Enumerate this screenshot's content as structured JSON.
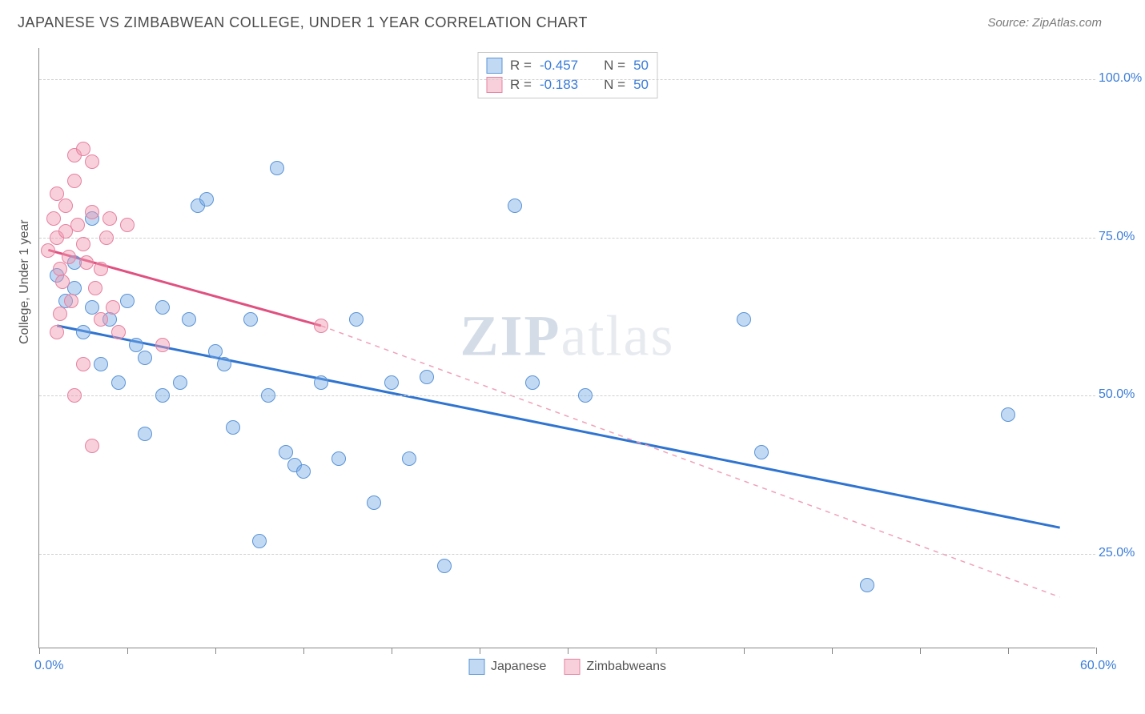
{
  "header": {
    "title": "JAPANESE VS ZIMBABWEAN COLLEGE, UNDER 1 YEAR CORRELATION CHART",
    "source": "Source: ZipAtlas.com"
  },
  "ylabel": "College, Under 1 year",
  "watermark_bold": "ZIP",
  "watermark_rest": "atlas",
  "chart": {
    "type": "scatter",
    "xlim": [
      0,
      60
    ],
    "ylim": [
      10,
      105
    ],
    "ytick_values": [
      25,
      50,
      75,
      100
    ],
    "ytick_labels": [
      "25.0%",
      "50.0%",
      "75.0%",
      "100.0%"
    ],
    "xtick_positions": [
      0,
      5,
      10,
      15,
      20,
      25,
      30,
      35,
      40,
      45,
      50,
      55,
      60
    ],
    "xtick_labels": {
      "0": "0.0%",
      "60": "60.0%"
    },
    "grid_color": "#d0d0d0",
    "background_color": "#ffffff",
    "point_radius": 9,
    "series": [
      {
        "name": "Japanese",
        "fill": "rgba(120,170,230,0.45)",
        "stroke": "#5a94d6",
        "R": "-0.457",
        "N": "50",
        "line": {
          "x1": 1,
          "y1": 61,
          "x2": 58,
          "y2": 29,
          "color": "#2f74d0",
          "width": 3,
          "dash": "none"
        },
        "points": [
          [
            1,
            69
          ],
          [
            1.5,
            65
          ],
          [
            2,
            71
          ],
          [
            2,
            67
          ],
          [
            2.5,
            60
          ],
          [
            3,
            64
          ],
          [
            3,
            78
          ],
          [
            3.5,
            55
          ],
          [
            4,
            62
          ],
          [
            4.5,
            52
          ],
          [
            5,
            65
          ],
          [
            5.5,
            58
          ],
          [
            6,
            44
          ],
          [
            6,
            56
          ],
          [
            7,
            50
          ],
          [
            7,
            64
          ],
          [
            8,
            52
          ],
          [
            8.5,
            62
          ],
          [
            9,
            80
          ],
          [
            9.5,
            81
          ],
          [
            10,
            57
          ],
          [
            10.5,
            55
          ],
          [
            11,
            45
          ],
          [
            12,
            62
          ],
          [
            12.5,
            27
          ],
          [
            13,
            50
          ],
          [
            13.5,
            86
          ],
          [
            14,
            41
          ],
          [
            14.5,
            39
          ],
          [
            15,
            38
          ],
          [
            16,
            52
          ],
          [
            17,
            40
          ],
          [
            18,
            62
          ],
          [
            19,
            33
          ],
          [
            20,
            52
          ],
          [
            21,
            40
          ],
          [
            22,
            53
          ],
          [
            23,
            23
          ],
          [
            27,
            80
          ],
          [
            28,
            52
          ],
          [
            31,
            50
          ],
          [
            40,
            62
          ],
          [
            41,
            41
          ],
          [
            47,
            20
          ],
          [
            55,
            47
          ]
        ]
      },
      {
        "name": "Zimbabweans",
        "fill": "rgba(240,150,175,0.45)",
        "stroke": "#e681a0",
        "R": "-0.183",
        "N": "50",
        "line_solid": {
          "x1": 0.5,
          "y1": 73,
          "x2": 16,
          "y2": 61,
          "color": "#e05080",
          "width": 3
        },
        "line_dashed": {
          "x1": 16,
          "y1": 61,
          "x2": 58,
          "y2": 18,
          "color": "#f0a0b8",
          "width": 1.5
        },
        "points": [
          [
            0.5,
            73
          ],
          [
            0.8,
            78
          ],
          [
            1,
            82
          ],
          [
            1,
            75
          ],
          [
            1.2,
            70
          ],
          [
            1.3,
            68
          ],
          [
            1.5,
            76
          ],
          [
            1.5,
            80
          ],
          [
            1.7,
            72
          ],
          [
            1.8,
            65
          ],
          [
            2,
            88
          ],
          [
            2,
            84
          ],
          [
            2.2,
            77
          ],
          [
            2.5,
            89
          ],
          [
            2.5,
            74
          ],
          [
            2.7,
            71
          ],
          [
            3,
            87
          ],
          [
            3,
            79
          ],
          [
            3.2,
            67
          ],
          [
            3.5,
            70
          ],
          [
            3.5,
            62
          ],
          [
            3.8,
            75
          ],
          [
            4,
            78
          ],
          [
            4.2,
            64
          ],
          [
            4.5,
            60
          ],
          [
            2,
            50
          ],
          [
            3,
            42
          ],
          [
            2.5,
            55
          ],
          [
            1,
            60
          ],
          [
            1.2,
            63
          ],
          [
            5,
            77
          ],
          [
            7,
            58
          ],
          [
            16,
            61
          ]
        ]
      }
    ]
  },
  "legend_top": [
    {
      "swatch_fill": "rgba(120,170,230,0.45)",
      "swatch_stroke": "#5a94d6",
      "R_label": "R =",
      "R": "-0.457",
      "N_label": "N =",
      "N": "50"
    },
    {
      "swatch_fill": "rgba(240,150,175,0.45)",
      "swatch_stroke": "#e681a0",
      "R_label": "R =",
      "R": " -0.183",
      "N_label": "N =",
      "N": "50"
    }
  ],
  "legend_bottom": [
    {
      "swatch_fill": "rgba(120,170,230,0.45)",
      "swatch_stroke": "#5a94d6",
      "label": "Japanese"
    },
    {
      "swatch_fill": "rgba(240,150,175,0.45)",
      "swatch_stroke": "#e681a0",
      "label": "Zimbabweans"
    }
  ]
}
